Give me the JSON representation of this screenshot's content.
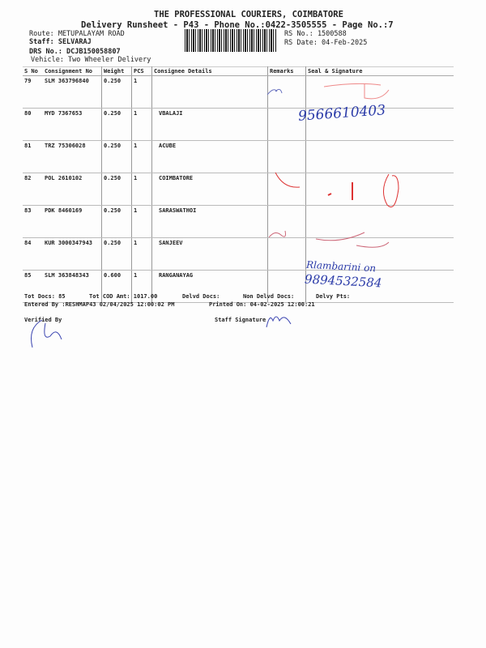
{
  "header": {
    "company": "THE PROFESSIONAL COURIERS, COIMBATORE",
    "subtitle": "Delivery Runsheet - P43 - Phone No.:0422-3505555 - Page No.:7",
    "route": "Route: METUPALAYAM ROAD",
    "staff": "Staff: SELVARAJ",
    "drs_no": "DRS No.: DCJB150058807",
    "vehicle": "Vehicle: Two Wheeler Delivery",
    "rs_no": "RS No.: 1500588",
    "rs_date": "RS Date: 04-Feb-2025"
  },
  "table": {
    "columns": [
      "S No",
      "Consignment No",
      "Weight",
      "PCS",
      "Consignee Details",
      "Remarks",
      "Seal & Signature"
    ],
    "rows": [
      {
        "sno": "79",
        "cn": "SLM 363796840",
        "weight": "0.250",
        "pcs": "1",
        "consignee": ""
      },
      {
        "sno": "80",
        "cn": "MYD 7367653",
        "weight": "0.250",
        "pcs": "1",
        "consignee": "VBALAJI"
      },
      {
        "sno": "81",
        "cn": "TRZ 75306028",
        "weight": "0.250",
        "pcs": "1",
        "consignee": "ACUBE"
      },
      {
        "sno": "82",
        "cn": "POL 2610102",
        "weight": "0.250",
        "pcs": "1",
        "consignee": "COIMBATORE"
      },
      {
        "sno": "83",
        "cn": "PDK 8460169",
        "weight": "0.250",
        "pcs": "1",
        "consignee": "SARASWATHOI"
      },
      {
        "sno": "84",
        "cn": "KUR 3000347943",
        "weight": "0.250",
        "pcs": "1",
        "consignee": "SANJEEV"
      },
      {
        "sno": "85",
        "cn": "SLM 363848343",
        "weight": "0.600",
        "pcs": "1",
        "consignee": "RANGANAYAG"
      }
    ]
  },
  "handwriting": {
    "row80": "9566610403",
    "row85_name": "Rlambarini on",
    "row85_phone": "9894532584"
  },
  "footer": {
    "tot_docs": "Tot Docs:  85",
    "cod": "Tot COD Amt: 1017.00",
    "delvd": "Delvd Docs:",
    "non_delvd": "Non Delvd Docs:",
    "delvy_pts": "Delvy Pts:",
    "entered": "Entered By :RESHMAP43 02/04/2025 12:00:02 PM",
    "printed": "Printed On: 04-02-2025 12:00:21",
    "verified": "Verified By",
    "staff_sig": "Staff Signature"
  },
  "colors": {
    "ink": "#2a3aa8",
    "red_ink": "#d33"
  }
}
